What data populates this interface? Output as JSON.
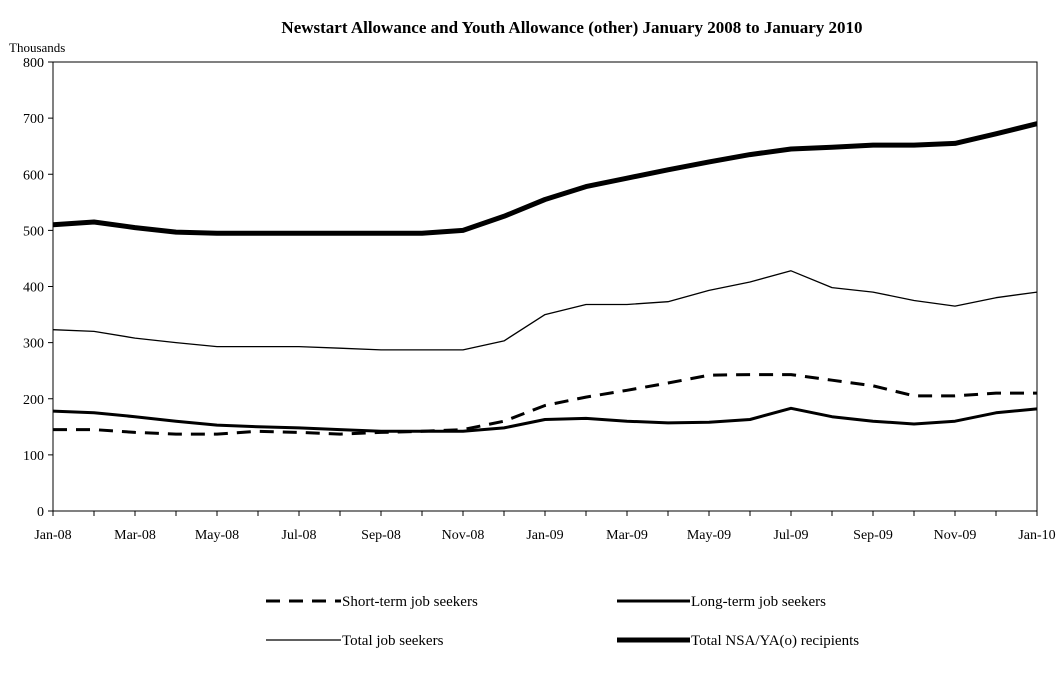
{
  "chart_data": {
    "type": "line",
    "title": "Newstart Allowance and Youth Allowance (other) January 2008 to January 2010",
    "ylabel": "Thousands",
    "xlabel": "",
    "ylim": [
      0,
      800
    ],
    "y_ticks": [
      "0",
      "100",
      "200",
      "300",
      "400",
      "500",
      "600",
      "700",
      "800"
    ],
    "x_tick_labels": [
      "Jan-08",
      "Mar-08",
      "May-08",
      "Jul-08",
      "Sep-08",
      "Nov-08",
      "Jan-09",
      "Mar-09",
      "May-09",
      "Jul-09",
      "Sep-09",
      "Nov-09",
      "Jan-10"
    ],
    "x": [
      "Jan-08",
      "Feb-08",
      "Mar-08",
      "Apr-08",
      "May-08",
      "Jun-08",
      "Jul-08",
      "Aug-08",
      "Sep-08",
      "Oct-08",
      "Nov-08",
      "Dec-08",
      "Jan-09",
      "Feb-09",
      "Mar-09",
      "Apr-09",
      "May-09",
      "Jun-09",
      "Jul-09",
      "Aug-09",
      "Sep-09",
      "Oct-09",
      "Nov-09",
      "Dec-09",
      "Jan-10"
    ],
    "grid": false,
    "legend_position": "bottom",
    "series": [
      {
        "name": "Short-term job seekers",
        "style": "dashed",
        "values": [
          145,
          145,
          140,
          137,
          137,
          142,
          140,
          137,
          140,
          142,
          145,
          160,
          188,
          203,
          215,
          228,
          242,
          243,
          243,
          233,
          223,
          205,
          205,
          210,
          210
        ]
      },
      {
        "name": "Long-term job seekers",
        "style": "medium",
        "values": [
          178,
          175,
          168,
          160,
          153,
          150,
          148,
          145,
          142,
          142,
          142,
          148,
          163,
          165,
          160,
          157,
          158,
          163,
          183,
          168,
          160,
          155,
          160,
          175,
          182
        ]
      },
      {
        "name": "Total job seekers",
        "style": "thin",
        "values": [
          323,
          320,
          308,
          300,
          293,
          293,
          293,
          290,
          287,
          287,
          287,
          303,
          350,
          368,
          368,
          373,
          393,
          408,
          428,
          398,
          390,
          375,
          365,
          380,
          390
        ]
      },
      {
        "name": "Total NSA/YA(o) recipients",
        "style": "thick",
        "values": [
          510,
          515,
          505,
          497,
          495,
          495,
          495,
          495,
          495,
          495,
          500,
          525,
          555,
          578,
          593,
          608,
          622,
          635,
          645,
          648,
          652,
          652,
          655,
          672,
          690
        ]
      }
    ]
  }
}
